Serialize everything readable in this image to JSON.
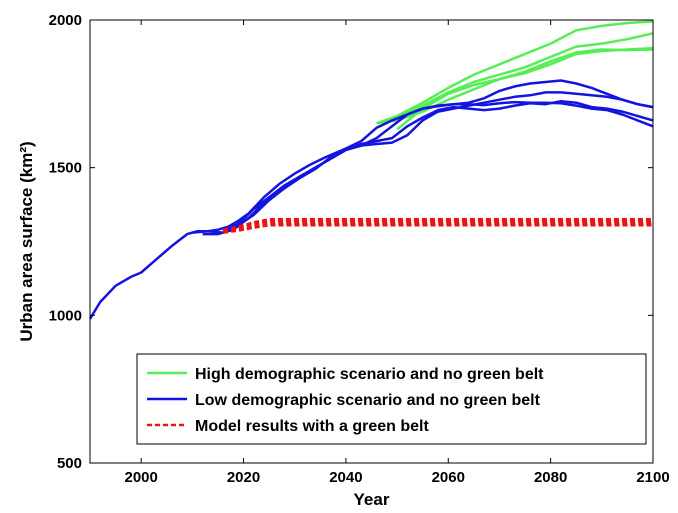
{
  "chart_data": {
    "type": "line",
    "xlabel": "Year",
    "ylabel": "Urban area surface (km²)",
    "xlim": [
      1990,
      2100
    ],
    "ylim": [
      500,
      2000
    ],
    "xticks": [
      2000,
      2020,
      2040,
      2060,
      2080,
      2100
    ],
    "yticks": [
      500,
      1000,
      1500,
      2000
    ],
    "grid": false,
    "legend_position": "bottom-right",
    "legend": [
      {
        "label": "High demographic scenario and no green belt",
        "color": "#55ee55",
        "dash": "solid"
      },
      {
        "label": "Low demographic scenario and no green belt",
        "color": "#1414e0",
        "dash": "solid"
      },
      {
        "label": "Model results with a green belt",
        "color": "#ee1111",
        "dash": "dashed"
      }
    ],
    "series": [
      {
        "group": "high",
        "color": "#55ee55",
        "dash": "solid",
        "x": [
          2046,
          2050,
          2055,
          2060,
          2065,
          2070,
          2075,
          2080,
          2085,
          2090,
          2095,
          2100
        ],
        "y": [
          1650,
          1675,
          1720,
          1770,
          1815,
          1850,
          1885,
          1920,
          1965,
          1980,
          1990,
          1995
        ]
      },
      {
        "group": "high",
        "color": "#55ee55",
        "dash": "solid",
        "x": [
          2046,
          2050,
          2055,
          2060,
          2065,
          2070,
          2075,
          2080,
          2085,
          2090,
          2095,
          2100
        ],
        "y": [
          1650,
          1670,
          1710,
          1755,
          1790,
          1815,
          1840,
          1875,
          1910,
          1920,
          1935,
          1955
        ]
      },
      {
        "group": "high",
        "color": "#55ee55",
        "dash": "solid",
        "x": [
          2046,
          2050,
          2055,
          2060,
          2065,
          2070,
          2075,
          2080,
          2085,
          2090,
          2095,
          2100
        ],
        "y": [
          1650,
          1660,
          1690,
          1730,
          1765,
          1800,
          1820,
          1850,
          1885,
          1895,
          1900,
          1905
        ]
      },
      {
        "group": "high",
        "color": "#55ee55",
        "dash": "solid",
        "x": [
          2050,
          2055,
          2060,
          2065,
          2070,
          2075,
          2080,
          2085,
          2090,
          2095,
          2100
        ],
        "y": [
          1630,
          1700,
          1750,
          1780,
          1800,
          1825,
          1860,
          1890,
          1900,
          1898,
          1900
        ]
      },
      {
        "group": "low",
        "color": "#1414e0",
        "dash": "solid",
        "x": [
          1990,
          1992,
          1995,
          1998,
          2000,
          2003,
          2006,
          2009,
          2011,
          2013,
          2015,
          2017,
          2019,
          2021,
          2024,
          2027,
          2030,
          2033,
          2036,
          2040,
          2043,
          2046,
          2049,
          2052,
          2055,
          2058,
          2061,
          2064,
          2067,
          2070,
          2073,
          2076,
          2079,
          2082,
          2085,
          2088,
          2091,
          2094,
          2097,
          2100
        ],
        "y": [
          988,
          1045,
          1100,
          1130,
          1145,
          1190,
          1235,
          1275,
          1285,
          1285,
          1290,
          1300,
          1320,
          1345,
          1400,
          1445,
          1480,
          1510,
          1535,
          1565,
          1590,
          1635,
          1660,
          1680,
          1700,
          1708,
          1715,
          1715,
          1712,
          1718,
          1722,
          1720,
          1720,
          1718,
          1710,
          1700,
          1695,
          1680,
          1660,
          1640
        ]
      },
      {
        "group": "low",
        "color": "#1414e0",
        "dash": "solid",
        "x": [
          2010,
          2013,
          2016,
          2019,
          2022,
          2025,
          2028,
          2031,
          2034,
          2037,
          2040,
          2043,
          2046,
          2049,
          2052,
          2055,
          2058,
          2061,
          2064,
          2067,
          2070,
          2073,
          2076,
          2079,
          2082,
          2085,
          2088,
          2091,
          2094,
          2097,
          2100
        ],
        "y": [
          1280,
          1285,
          1280,
          1305,
          1340,
          1390,
          1430,
          1465,
          1495,
          1535,
          1560,
          1580,
          1590,
          1600,
          1640,
          1670,
          1695,
          1705,
          1700,
          1695,
          1700,
          1710,
          1718,
          1715,
          1725,
          1720,
          1705,
          1700,
          1690,
          1675,
          1660
        ]
      },
      {
        "group": "low",
        "color": "#1414e0",
        "dash": "solid",
        "x": [
          2012,
          2015,
          2018,
          2021,
          2024,
          2027,
          2030,
          2033,
          2036,
          2040,
          2043,
          2046,
          2049,
          2052,
          2055,
          2058,
          2061,
          2064,
          2067,
          2070,
          2073,
          2076,
          2079,
          2082,
          2085,
          2088,
          2091,
          2094,
          2097,
          2100
        ],
        "y": [
          1275,
          1275,
          1290,
          1330,
          1380,
          1420,
          1455,
          1490,
          1520,
          1560,
          1575,
          1580,
          1585,
          1610,
          1660,
          1690,
          1700,
          1710,
          1720,
          1730,
          1740,
          1745,
          1755,
          1755,
          1750,
          1745,
          1740,
          1730,
          1715,
          1705
        ]
      },
      {
        "group": "low",
        "color": "#1414e0",
        "dash": "solid",
        "x": [
          2016,
          2019,
          2022,
          2025,
          2028,
          2031,
          2034,
          2037,
          2040,
          2043,
          2046,
          2049,
          2052,
          2055,
          2058,
          2061,
          2064,
          2067,
          2070,
          2073,
          2076,
          2079,
          2082,
          2085,
          2088,
          2091,
          2094,
          2097,
          2100
        ],
        "y": [
          1285,
          1310,
          1360,
          1400,
          1440,
          1470,
          1500,
          1530,
          1560,
          1575,
          1600,
          1640,
          1680,
          1700,
          1710,
          1715,
          1720,
          1735,
          1760,
          1775,
          1785,
          1790,
          1795,
          1785,
          1770,
          1750,
          1730,
          1715,
          1705
        ]
      },
      {
        "group": "green_belt",
        "color": "#ee1111",
        "dash": "dashed",
        "x": [
          2016,
          2019,
          2022,
          2025,
          2100
        ],
        "y": [
          1290,
          1300,
          1315,
          1325,
          1325
        ]
      },
      {
        "group": "green_belt",
        "color": "#ee1111",
        "dash": "dashed",
        "x": [
          2016,
          2019,
          2022,
          2025,
          2100
        ],
        "y": [
          1285,
          1295,
          1308,
          1318,
          1318
        ]
      },
      {
        "group": "green_belt",
        "color": "#ee1111",
        "dash": "dashed",
        "x": [
          2016,
          2019,
          2022,
          2025,
          2100
        ],
        "y": [
          1282,
          1290,
          1300,
          1310,
          1310
        ]
      },
      {
        "group": "green_belt",
        "color": "#ee1111",
        "dash": "dashed",
        "x": [
          2016,
          2019,
          2022,
          2025,
          2100
        ],
        "y": [
          1280,
          1287,
          1297,
          1305,
          1305
        ]
      }
    ]
  }
}
